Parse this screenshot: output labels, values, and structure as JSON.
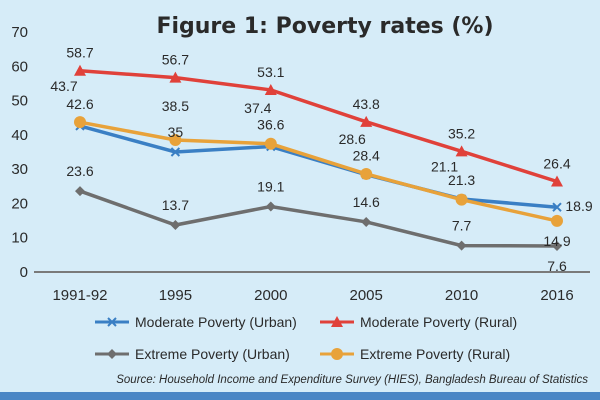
{
  "chart_data": {
    "type": "line",
    "title": "Figure 1: Poverty rates (%)",
    "xlabel": "",
    "ylabel": "",
    "categories": [
      "1991-92",
      "1995",
      "2000",
      "2005",
      "2010",
      "2016"
    ],
    "y_ticks": [
      0,
      10,
      20,
      30,
      40,
      50,
      60,
      70
    ],
    "ylim": [
      0,
      70
    ],
    "grid": false,
    "legend_position": "bottom",
    "series": [
      {
        "name": "Moderate Poverty (Urban)",
        "color": "#3a7fc4",
        "marker": "x",
        "values": [
          42.6,
          35,
          36.6,
          28.4,
          21.3,
          18.9
        ],
        "labels": [
          "42.6",
          "35",
          "36.6",
          "28.4",
          "21.3",
          "18.9"
        ]
      },
      {
        "name": "Moderate Poverty (Rural)",
        "color": "#e0413a",
        "marker": "triangle",
        "values": [
          58.7,
          56.7,
          53.1,
          43.8,
          35.2,
          26.4
        ],
        "labels": [
          "58.7",
          "56.7",
          "53.1",
          "43.8",
          "35.2",
          "26.4"
        ]
      },
      {
        "name": "Extreme Poverty (Urban)",
        "color": "#6e6e6e",
        "marker": "diamond",
        "values": [
          23.6,
          13.7,
          19.1,
          14.6,
          7.7,
          7.6
        ],
        "labels": [
          "23.6",
          "13.7",
          "19.1",
          "14.6",
          "7.7",
          "7.6"
        ]
      },
      {
        "name": "Extreme Poverty (Rural)",
        "color": "#e8a23a",
        "marker": "circle",
        "values": [
          43.7,
          38.5,
          37.4,
          28.6,
          21.1,
          14.9
        ],
        "labels": [
          "43.7",
          "38.5",
          "37.4",
          "28.6",
          "21.1",
          "14.9"
        ]
      }
    ],
    "source": "Source: Household Income and Expenditure Survey (HIES), Bangladesh Bureau of Statistics"
  }
}
